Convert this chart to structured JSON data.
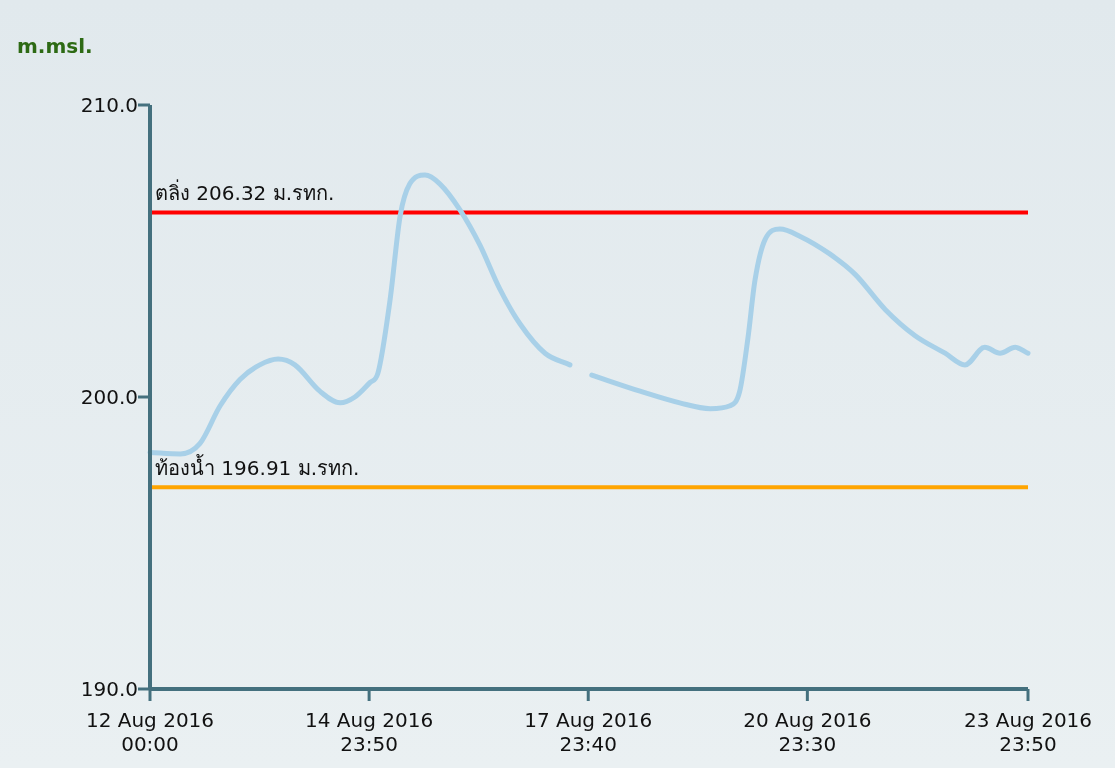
{
  "chart_data": {
    "type": "line",
    "ylabel": "m.msl.",
    "x": [
      "2016-08-12T00:00",
      "2016-08-12T10:00",
      "2016-08-12T16:20",
      "2016-08-12T23:00",
      "2016-08-13T05:30",
      "2016-08-13T12:00",
      "2016-08-13T18:00",
      "2016-08-13T23:30",
      "2016-08-14T07:40",
      "2016-08-14T14:20",
      "2016-08-14T19:10",
      "2016-08-15T00:10",
      "2016-08-15T02:40",
      "2016-08-15T06:40",
      "2016-08-15T10:00",
      "2016-08-15T13:10",
      "2016-08-15T18:10",
      "2016-08-15T23:00",
      "2016-08-16T05:40",
      "2016-08-16T12:10",
      "2016-08-16T18:40",
      "2016-08-17T01:20",
      "2016-08-17T09:30",
      "2016-08-17T17:40",
      "2016-08-17T21:00",
      "2016-08-18T00:50",
      "2016-08-18T16:40",
      "2016-08-19T05:40",
      "2016-08-19T15:40",
      "2016-08-19T22:10",
      "2016-08-20T01:20",
      "2016-08-20T04:00",
      "2016-08-20T06:20",
      "2016-08-20T09:40",
      "2016-08-20T14:30",
      "2016-08-20T21:10",
      "2016-08-21T06:50",
      "2016-08-21T15:10",
      "2016-08-22T01:00",
      "2016-08-22T10:50",
      "2016-08-22T20:40",
      "2016-08-23T03:10",
      "2016-08-23T09:40",
      "2016-08-23T14:40",
      "2016-08-23T19:40",
      "2016-08-23T23:50"
    ],
    "series": [
      {
        "color": "#a8d0e8",
        "values": [
          198.1,
          198.05,
          198.4,
          199.7,
          200.6,
          201.1,
          201.3,
          201.1,
          200.2,
          199.8,
          200.0,
          200.5,
          200.8,
          203.3,
          206.2,
          207.3,
          207.6,
          207.3,
          206.4,
          205.2,
          203.7,
          202.5,
          201.5,
          201.1,
          null,
          200.75,
          200.2,
          199.8,
          199.6,
          199.7,
          200.2,
          202.0,
          204.0,
          205.4,
          205.75,
          205.5,
          204.9,
          204.2,
          203.0,
          202.1,
          201.5,
          201.1,
          201.7,
          201.5,
          201.7,
          201.5
        ]
      }
    ],
    "xlim": [
      "2016-08-12T00:00",
      "2016-08-23T23:50"
    ],
    "xticks": [
      {
        "value": "2016-08-12T00:00",
        "label": "12 Aug 2016\n00:00"
      },
      {
        "value": "2016-08-14T23:50",
        "label": "14 Aug 2016\n23:50"
      },
      {
        "value": "2016-08-17T23:40",
        "label": "17 Aug 2016\n23:40"
      },
      {
        "value": "2016-08-20T23:30",
        "label": "20 Aug 2016\n23:30"
      },
      {
        "value": "2016-08-23T23:50",
        "label": "23 Aug 2016\n23:50"
      }
    ],
    "ylim": [
      190,
      210
    ],
    "yticks": [
      {
        "value": 190,
        "label": "190.0"
      },
      {
        "value": 200,
        "label": "200.0"
      },
      {
        "value": 210,
        "label": "210.0"
      }
    ],
    "ref_lines": [
      {
        "axis": "y",
        "value": 206.32,
        "label": "ตลิ่ง 206.32 ม.รทก.",
        "color": "#ff0000"
      },
      {
        "axis": "y",
        "value": 196.91,
        "label": "ท้องน้ำ 196.91 ม.รทก.",
        "color": "#ffa500"
      }
    ],
    "grid": false,
    "marker": "none",
    "line_style": "solid"
  }
}
